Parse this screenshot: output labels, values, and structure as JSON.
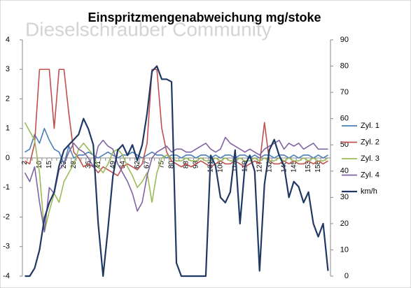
{
  "chart_data": {
    "type": "line",
    "title": "Einspritzmengenabweichung mg/stoke",
    "watermark": "Dieselschrauber Community",
    "categories": [
      "2",
      null,
      null,
      "10",
      null,
      "15",
      null,
      null,
      "23",
      null,
      "28",
      null,
      null,
      "36",
      null,
      "41",
      null,
      null,
      "49",
      null,
      "54",
      null,
      null,
      "62",
      null,
      "67",
      null,
      null,
      "75",
      null,
      "80",
      null,
      null,
      "88",
      null,
      "93",
      null,
      null,
      "101",
      null,
      "106",
      null,
      null,
      "114",
      null,
      "119",
      null,
      null,
      "127",
      null,
      "132",
      null,
      null,
      "140",
      null,
      "145",
      null,
      null,
      "153",
      null,
      "158",
      null,
      null
    ],
    "ylim": [
      -4,
      4
    ],
    "yticks": [
      -4,
      -3,
      -2,
      -1,
      0,
      1,
      2,
      3,
      4
    ],
    "y2lim": [
      0,
      90
    ],
    "y2ticks": [
      0,
      10,
      20,
      30,
      40,
      50,
      60,
      70,
      80,
      90
    ],
    "grid": false,
    "legend": "right",
    "series": [
      {
        "name": "Zyl. 1",
        "color": "#4a7eb9",
        "values": [
          0.2,
          0.3,
          0.8,
          0.5,
          1.0,
          0.6,
          0.3,
          0.2,
          -0.2,
          0.4,
          0.0,
          0.1,
          0.1,
          0.2,
          0.1,
          0.0,
          0.1,
          0.2,
          0.1,
          0.0,
          0.1,
          0.1,
          0.2,
          0.1,
          0.0,
          0.1,
          0.2,
          0.1,
          0.1,
          0.0,
          0.1,
          0.1,
          0.0,
          0.1,
          0.1,
          0.0,
          0.1,
          0.1,
          0.0,
          0.1,
          0.0,
          0.1,
          0.1,
          0.0,
          0.1,
          0.1,
          0.0,
          0.1,
          0.0,
          0.1,
          0.1,
          0.0,
          0.1,
          0.1,
          0.0,
          0.1,
          0.0,
          0.1,
          0.1,
          0.0,
          0.1,
          0.0,
          0.1
        ]
      },
      {
        "name": "Zyl. 2",
        "color": "#c0504d",
        "values": [
          -0.1,
          -0.2,
          0.5,
          3,
          3,
          3,
          1,
          3,
          3,
          1.5,
          0.2,
          0.0,
          -0.3,
          -0.2,
          -0.3,
          -0.5,
          -0.3,
          -0.4,
          -0.5,
          -0.6,
          -0.3,
          -0.2,
          -0.3,
          -0.4,
          -0.2,
          0.5,
          3,
          3,
          1,
          0.2,
          -0.1,
          -0.2,
          -0.3,
          -0.2,
          -0.3,
          -0.2,
          -0.1,
          -0.2,
          -0.3,
          -0.2,
          -0.1,
          -0.2,
          -0.2,
          -0.1,
          -0.2,
          -0.3,
          -0.2,
          -0.1,
          -0.2,
          1.2,
          -0.1,
          -0.2,
          -0.2,
          -0.1,
          -0.2,
          -0.1,
          -0.2,
          -0.2,
          -0.1,
          -0.2,
          -0.1,
          -0.2,
          -0.1
        ]
      },
      {
        "name": "Zyl. 3",
        "color": "#9bbb59",
        "values": [
          1.2,
          0.9,
          0.6,
          -0.5,
          -2.5,
          -1.8,
          -1.2,
          -1.5,
          -0.8,
          -0.5,
          -0.2,
          0.3,
          0.5,
          0.3,
          0.1,
          -0.3,
          -0.5,
          -0.2,
          0.2,
          0.3,
          0.1,
          -0.3,
          -0.6,
          -1.0,
          -0.8,
          -0.5,
          -1.5,
          -0.5,
          0.0,
          0.1,
          0.0,
          -0.1,
          -0.1,
          0.0,
          -0.1,
          -0.1,
          0.0,
          -0.1,
          -0.1,
          0.0,
          -0.1,
          0.0,
          -0.1,
          -0.1,
          0.0,
          -0.1,
          -0.1,
          0.0,
          -0.1,
          0.0,
          -0.1,
          -0.1,
          0.0,
          -0.1,
          0.0,
          -0.1,
          -0.1,
          0.0,
          -0.1,
          0.0,
          -0.1,
          -0.1,
          0.0
        ]
      },
      {
        "name": "Zyl. 4",
        "color": "#8064a2",
        "values": [
          -0.5,
          -0.8,
          -0.3,
          -1.5,
          -2.5,
          -1.0,
          -1.2,
          -0.4,
          -0.2,
          0.2,
          0.5,
          0.3,
          0.2,
          0.0,
          -0.3,
          0.4,
          0.6,
          0.4,
          0.3,
          -0.2,
          -0.5,
          -0.8,
          -1.2,
          -1.8,
          -1.5,
          -0.6,
          0.0,
          0.2,
          0.3,
          0.4,
          0.2,
          0.3,
          0.3,
          0.2,
          0.2,
          0.3,
          0.4,
          0.5,
          0.3,
          0.2,
          0.3,
          0.7,
          0.5,
          0.4,
          0.3,
          0.2,
          0.3,
          0.2,
          0.1,
          0.3,
          0.4,
          0.5,
          0.6,
          0.3,
          0.5,
          0.4,
          0.5,
          0.3,
          0.4,
          0.5,
          0.3,
          0.3,
          0.3
        ]
      },
      {
        "name": "km/h",
        "color": "#1f3864",
        "axis": "y2",
        "values": [
          0,
          0,
          3,
          10,
          22,
          28,
          32,
          42,
          48,
          50,
          52,
          54,
          60,
          56,
          50,
          20,
          0,
          18,
          38,
          48,
          50,
          46,
          50,
          44,
          50,
          62,
          78,
          80,
          75,
          75,
          74,
          5,
          0,
          0,
          0,
          0,
          0,
          0,
          46,
          42,
          30,
          28,
          32,
          48,
          20,
          42,
          46,
          40,
          2,
          35,
          48,
          52,
          46,
          42,
          30,
          36,
          34,
          28,
          32,
          20,
          15,
          20,
          2
        ]
      }
    ]
  }
}
